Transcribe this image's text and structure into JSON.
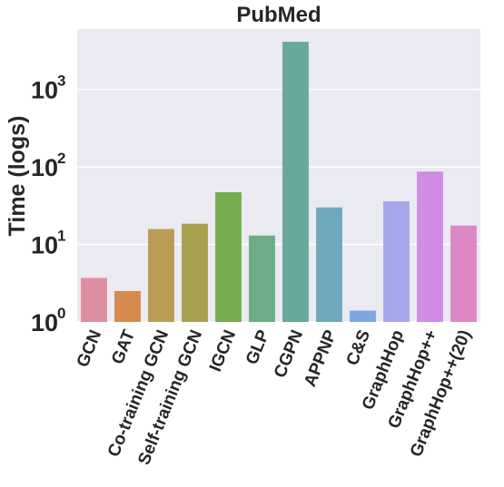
{
  "chart_data": {
    "type": "bar",
    "title": "PubMed",
    "ylabel": "Time (logs)",
    "xlabel": "",
    "yscale": "log",
    "ylim": [
      1,
      6000
    ],
    "yticks": [
      {
        "value": 1,
        "base": "10",
        "exp": "0"
      },
      {
        "value": 10,
        "base": "10",
        "exp": "1"
      },
      {
        "value": 100,
        "base": "10",
        "exp": "2"
      },
      {
        "value": 1000,
        "base": "10",
        "exp": "3"
      }
    ],
    "grid": true,
    "background": "#eaeaf2",
    "categories": [
      "GCN",
      "GAT",
      "Co-training GCN",
      "Self-training GCN",
      "IGCN",
      "GLP",
      "CGPN",
      "APPNP",
      "C&S",
      "GraphHop",
      "GraphHop++",
      "GraphHop++(20)"
    ],
    "values": [
      3.7,
      2.5,
      15.8,
      18.5,
      47,
      13,
      4100,
      30,
      1.4,
      36,
      87,
      17.5
    ],
    "colors": [
      "#dd8ea0",
      "#d58a4e",
      "#bb9c57",
      "#a8a04e",
      "#77ad4f",
      "#6dac84",
      "#69a99b",
      "#6fa9bb",
      "#7da6e0",
      "#a7a7ec",
      "#d18ae6",
      "#dc88c5"
    ]
  }
}
